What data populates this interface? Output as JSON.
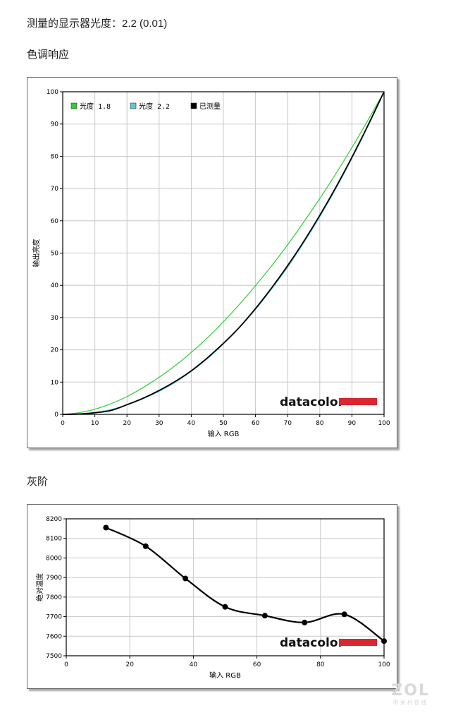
{
  "header": {
    "measured_gamma": "测量的显示器光度：2.2 (0.01)",
    "gamma_section_title": "色调响应",
    "grayscale_section_title": "灰阶"
  },
  "brand": {
    "logo_text": "datacolor",
    "logo_bar_color": "#d9262f",
    "watermark": "ZOL",
    "watermark_sub": "中关村在线"
  },
  "chart_data": [
    {
      "type": "line",
      "xlabel": "输入 RGB",
      "ylabel": "输出亮度",
      "xlim": [
        0,
        100
      ],
      "ylim": [
        0,
        100
      ],
      "x_ticks": [
        0,
        10,
        20,
        30,
        40,
        50,
        60,
        70,
        80,
        90,
        100
      ],
      "y_ticks": [
        0,
        10,
        20,
        30,
        40,
        50,
        60,
        70,
        80,
        90,
        100
      ],
      "grid": true,
      "legend_position": "top-left",
      "x": [
        0,
        5,
        10,
        15,
        20,
        25,
        30,
        35,
        40,
        45,
        50,
        55,
        60,
        65,
        70,
        75,
        80,
        85,
        90,
        95,
        100
      ],
      "series": [
        {
          "name": "光度 1.8",
          "color": "#33cc33",
          "values": [
            0,
            0.5,
            1.6,
            3.3,
            5.5,
            8.3,
            11.5,
            15.1,
            19.2,
            23.7,
            28.7,
            34.1,
            39.9,
            46.0,
            52.6,
            59.6,
            66.9,
            74.6,
            82.7,
            91.2,
            100
          ]
        },
        {
          "name": "光度 2.2",
          "color": "#5fc8d2",
          "values": [
            0,
            0.1,
            0.6,
            1.5,
            2.9,
            4.8,
            7.1,
            9.9,
            13.3,
            17.2,
            21.8,
            26.9,
            32.5,
            38.8,
            45.6,
            53.1,
            61.2,
            69.9,
            79.3,
            89.3,
            100
          ]
        },
        {
          "name": "已测量",
          "color": "#000000",
          "values": [
            0,
            0.1,
            0.5,
            1.2,
            3.0,
            5.0,
            7.4,
            10.2,
            13.5,
            17.5,
            22.0,
            27.0,
            32.8,
            39.2,
            46.1,
            53.6,
            61.7,
            70.4,
            79.7,
            89.6,
            100
          ]
        }
      ]
    },
    {
      "type": "line",
      "xlabel": "输入 RGB",
      "ylabel": "绝对温度",
      "xlim": [
        0,
        100
      ],
      "ylim": [
        7500,
        8200
      ],
      "x_ticks": [
        0,
        20,
        40,
        60,
        80,
        100
      ],
      "y_ticks": [
        7500,
        7600,
        7700,
        7800,
        7900,
        8000,
        8100,
        8200
      ],
      "grid": true,
      "series": [
        {
          "color": "#000000",
          "x": [
            12.5,
            25,
            37.5,
            50,
            62.5,
            75,
            87.5,
            100
          ],
          "values": [
            8155,
            8060,
            7895,
            7750,
            7705,
            7670,
            7712,
            7575
          ]
        }
      ]
    }
  ]
}
